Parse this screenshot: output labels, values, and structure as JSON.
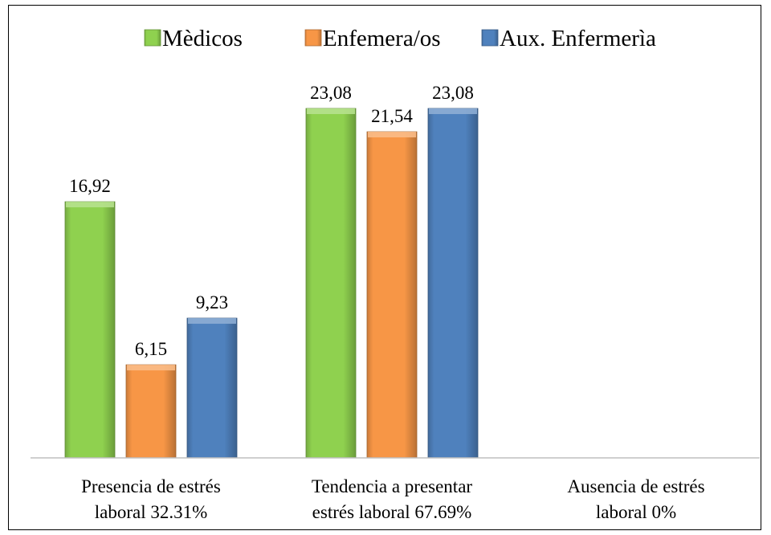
{
  "chart_data": {
    "type": "bar",
    "categories": [
      [
        "Presencia de estrés",
        "laboral 32.31%"
      ],
      [
        "Tendencia a presentar",
        "estrés laboral 67.69%"
      ],
      [
        "Ausencia de estrés",
        "laboral 0%"
      ]
    ],
    "series": [
      {
        "name": "Mèdicos",
        "color": "#8fd14f",
        "values": [
          16.92,
          23.08,
          null
        ],
        "value_labels": [
          "16,92",
          "23,08",
          ""
        ]
      },
      {
        "name": "Enfemera/os",
        "color": "#f79646",
        "values": [
          6.15,
          21.54,
          null
        ],
        "value_labels": [
          "6,15",
          "21,54",
          ""
        ]
      },
      {
        "name": "Aux. Enfermerìa",
        "color": "#4f81bd",
        "values": [
          9.23,
          23.08,
          null
        ],
        "value_labels": [
          "9,23",
          "23,08",
          ""
        ]
      }
    ],
    "ylim": [
      0,
      25
    ],
    "legend_position": "top",
    "grid": false,
    "y_axis_visible": false
  }
}
